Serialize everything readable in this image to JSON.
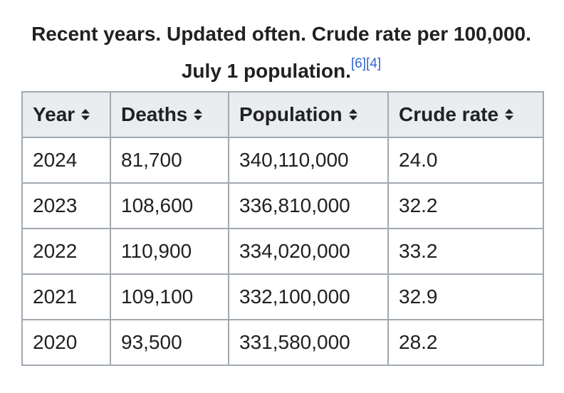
{
  "caption": {
    "text": "Recent years. Updated often. Crude rate per 100,000. July 1 population.",
    "refs": [
      "[6]",
      "[4]"
    ]
  },
  "table": {
    "columns": [
      "Year",
      "Deaths",
      "Population",
      "Crude rate"
    ],
    "rows": [
      [
        "2024",
        "81,700",
        "340,110,000",
        "24.0"
      ],
      [
        "2023",
        "108,600",
        "336,810,000",
        "32.2"
      ],
      [
        "2022",
        "110,900",
        "334,020,000",
        "33.2"
      ],
      [
        "2021",
        "109,100",
        "332,100,000",
        "32.9"
      ],
      [
        "2020",
        "93,500",
        "331,580,000",
        "28.2"
      ]
    ]
  },
  "icons": {
    "sort": "sort-icon"
  }
}
